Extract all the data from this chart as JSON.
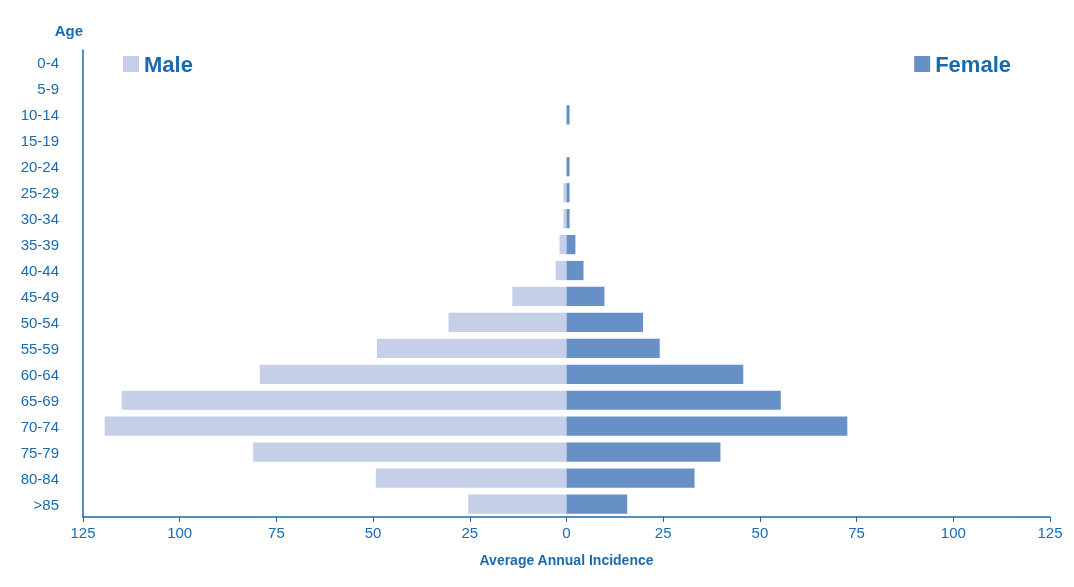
{
  "chart_data": {
    "type": "bar",
    "orientation": "horizontal",
    "stacked": true,
    "ylabel": "Age",
    "xlabel": "Average Annual Incidence",
    "categories": [
      "0-4",
      "5-9",
      "10-14",
      "15-19",
      "20-24",
      "25-29",
      "30-34",
      "35-39",
      "40-44",
      "45-49",
      "50-54",
      "55-59",
      "60-64",
      "65-69",
      "70-74",
      "75-79",
      "80-84",
      ">85"
    ],
    "series": [
      {
        "name": "Male",
        "color": "#c5cfe8",
        "values": [
          0,
          0,
          0,
          0,
          0,
          -0.8,
          -0.8,
          -1.8,
          -2.8,
          -14,
          -30.5,
          -49,
          -79.3,
          -115,
          -119.4,
          -81,
          -49.3,
          -25.4
        ]
      },
      {
        "name": "Female",
        "color": "#6690c6",
        "values": [
          0,
          0,
          0.8,
          0,
          0.8,
          0.8,
          0.8,
          2.3,
          4.4,
          9.8,
          19.8,
          24.1,
          45.7,
          55.4,
          72.6,
          39.8,
          33.1,
          15.7
        ]
      }
    ],
    "xlim": [
      -125,
      125
    ],
    "xticks": [
      {
        "value": -125,
        "label": "125"
      },
      {
        "value": -100,
        "label": "100"
      },
      {
        "value": -75,
        "label": "75"
      },
      {
        "value": -50,
        "label": "50"
      },
      {
        "value": -25,
        "label": "25"
      },
      0,
      25,
      50,
      75,
      100,
      125
    ],
    "grid": false,
    "legend": "top"
  }
}
